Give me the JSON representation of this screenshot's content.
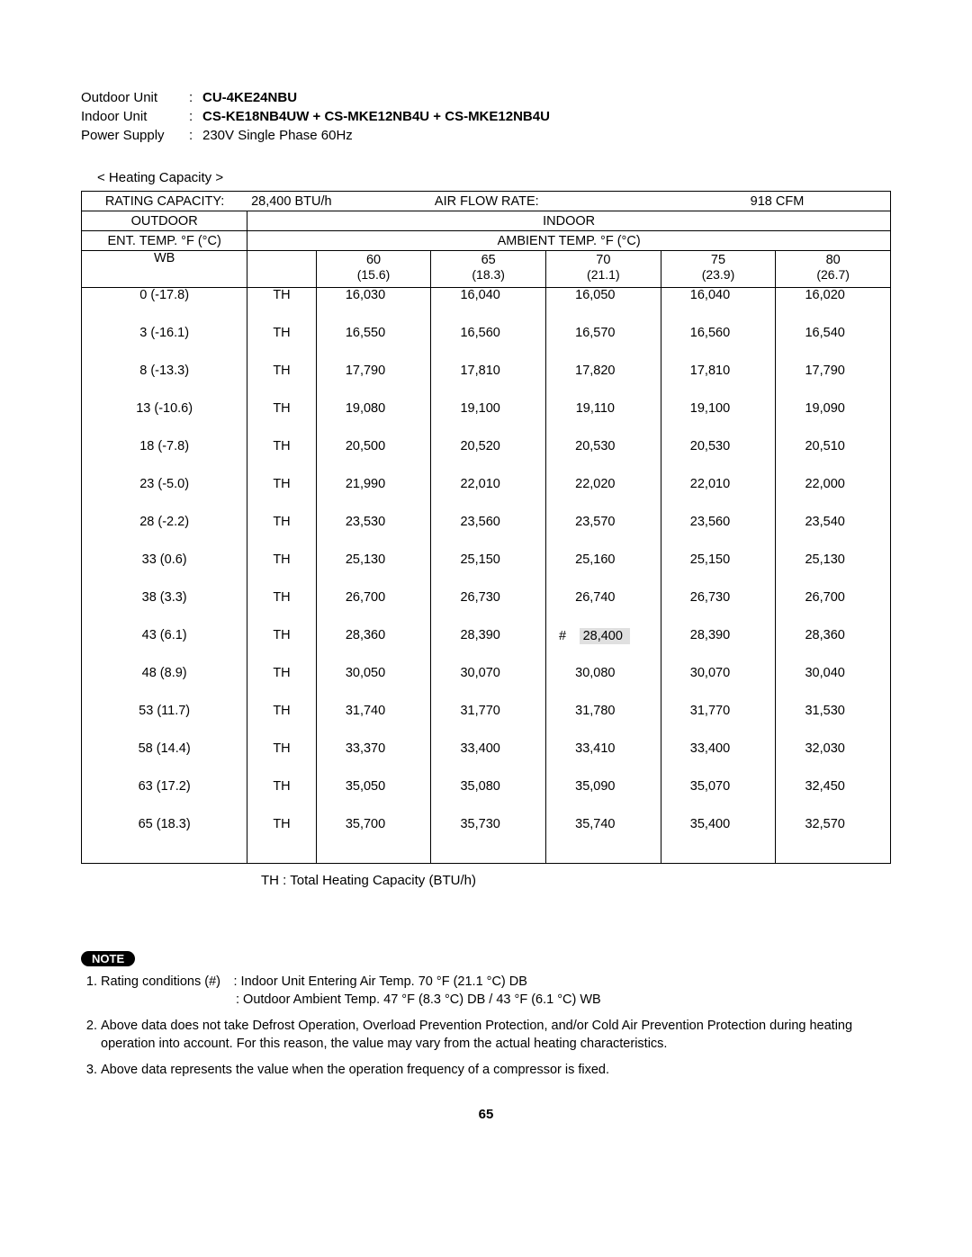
{
  "header": {
    "outdoor_label": "Outdoor Unit",
    "outdoor_value": "CU-4KE24NBU",
    "indoor_label": "Indoor Unit",
    "indoor_value": "CS-KE18NB4UW + CS-MKE12NB4U + CS-MKE12NB4U",
    "power_label": "Power Supply",
    "power_value": "230V Single Phase 60Hz"
  },
  "section_title": "< Heating Capacity >",
  "table": {
    "rating_capacity_label": "RATING CAPACITY:",
    "rating_capacity_value": "28,400 BTU/h",
    "airflow_label": "AIR FLOW RATE:",
    "airflow_value": "918 CFM",
    "outdoor_hdr": "OUTDOOR",
    "indoor_hdr": "INDOOR",
    "ent_temp_hdr": "ENT. TEMP. °F (°C)",
    "ambient_hdr": "AMBIENT TEMP. °F (°C)",
    "wb_hdr": "WB",
    "col_headers": [
      {
        "main": "60",
        "sub": "(15.6)"
      },
      {
        "main": "65",
        "sub": "(18.3)"
      },
      {
        "main": "70",
        "sub": "(21.1)"
      },
      {
        "main": "75",
        "sub": "(23.9)"
      },
      {
        "main": "80",
        "sub": "(26.7)"
      }
    ],
    "th_code": "TH",
    "rows": [
      {
        "wb": "0 (-17.8)",
        "v": [
          "16,030",
          "16,040",
          "16,050",
          "16,040",
          "16,020"
        ],
        "hl": -1
      },
      {
        "wb": "3 (-16.1)",
        "v": [
          "16,550",
          "16,560",
          "16,570",
          "16,560",
          "16,540"
        ],
        "hl": -1
      },
      {
        "wb": "8 (-13.3)",
        "v": [
          "17,790",
          "17,810",
          "17,820",
          "17,810",
          "17,790"
        ],
        "hl": -1
      },
      {
        "wb": "13 (-10.6)",
        "v": [
          "19,080",
          "19,100",
          "19,110",
          "19,100",
          "19,090"
        ],
        "hl": -1
      },
      {
        "wb": "18 (-7.8)",
        "v": [
          "20,500",
          "20,520",
          "20,530",
          "20,530",
          "20,510"
        ],
        "hl": -1
      },
      {
        "wb": "23 (-5.0)",
        "v": [
          "21,990",
          "22,010",
          "22,020",
          "22,010",
          "22,000"
        ],
        "hl": -1
      },
      {
        "wb": "28 (-2.2)",
        "v": [
          "23,530",
          "23,560",
          "23,570",
          "23,560",
          "23,540"
        ],
        "hl": -1
      },
      {
        "wb": "33 (0.6)",
        "v": [
          "25,130",
          "25,150",
          "25,160",
          "25,150",
          "25,130"
        ],
        "hl": -1
      },
      {
        "wb": "38 (3.3)",
        "v": [
          "26,700",
          "26,730",
          "26,740",
          "26,730",
          "26,700"
        ],
        "hl": -1
      },
      {
        "wb": "43 (6.1)",
        "v": [
          "28,360",
          "28,390",
          "28,400",
          "28,390",
          "28,360"
        ],
        "hl": 2
      },
      {
        "wb": "48 (8.9)",
        "v": [
          "30,050",
          "30,070",
          "30,080",
          "30,070",
          "30,040"
        ],
        "hl": -1
      },
      {
        "wb": "53 (11.7)",
        "v": [
          "31,740",
          "31,770",
          "31,780",
          "31,770",
          "31,530"
        ],
        "hl": -1
      },
      {
        "wb": "58 (14.4)",
        "v": [
          "33,370",
          "33,400",
          "33,410",
          "33,400",
          "32,030"
        ],
        "hl": -1
      },
      {
        "wb": "63 (17.2)",
        "v": [
          "35,050",
          "35,080",
          "35,090",
          "35,070",
          "32,450"
        ],
        "hl": -1
      },
      {
        "wb": "65 (18.3)",
        "v": [
          "35,700",
          "35,730",
          "35,740",
          "35,400",
          "32,570"
        ],
        "hl": -1
      }
    ],
    "highlight_prefix": "#"
  },
  "th_legend": "TH : Total Heating Capacity (BTU/h)",
  "note_label": "NOTE",
  "notes": {
    "n1a": "Rating conditions (#) :  Indoor Unit Entering Air Temp. 70 °F (21.1 °C) DB",
    "n1b": ":  Outdoor Ambient Temp. 47 °F (8.3 °C) DB / 43 °F (6.1 °C) WB",
    "n2": "Above data does not take Defrost Operation, Overload Prevention Protection, and/or Cold Air Prevention Protection during heating operation into account. For this reason, the value may vary from the actual heating characteristics.",
    "n3": "Above data represents the value when the operation frequency of a compressor is fixed."
  },
  "page_number": "65",
  "style": {
    "col_widths_pct": [
      20.5,
      8.5,
      14.2,
      14.2,
      14.2,
      14.2,
      14.2
    ],
    "highlight_bg": "#e0e0e0",
    "border_color": "#000000",
    "font_family": "Arial, Helvetica, sans-serif"
  }
}
